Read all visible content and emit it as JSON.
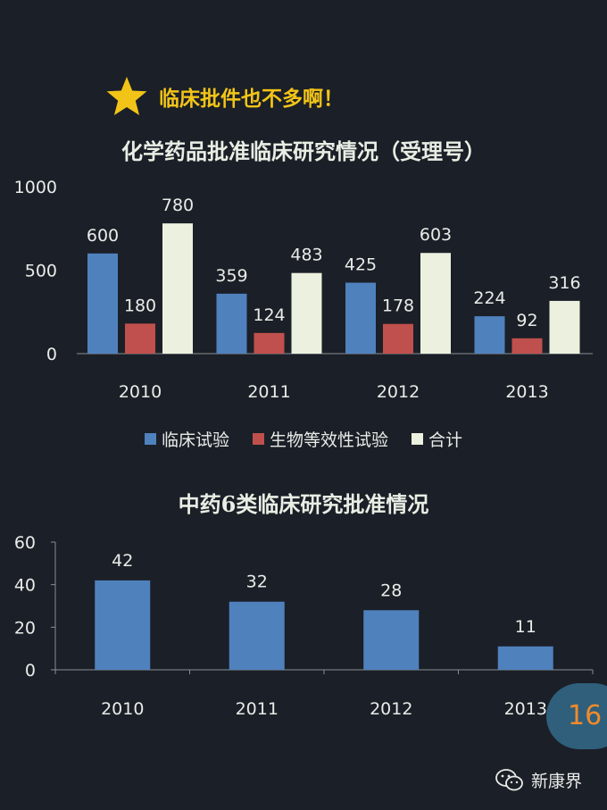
{
  "watermark": "",
  "banner": {
    "text": "临床批件也不多啊！",
    "icon": "star-icon",
    "icon_color": "#f2c418"
  },
  "chart_data": [
    {
      "type": "bar",
      "title": "化学药品批准临床研究情况（受理号）",
      "categories": [
        "2010",
        "2011",
        "2012",
        "2013"
      ],
      "series": [
        {
          "name": "临床试验",
          "color": "#4f81bd",
          "values": [
            600,
            359,
            425,
            224
          ]
        },
        {
          "name": "生物等效性试验",
          "color": "#c0504d",
          "values": [
            180,
            124,
            178,
            92
          ]
        },
        {
          "name": "合计",
          "color": "#ebf1de",
          "values": [
            780,
            483,
            603,
            316
          ]
        }
      ],
      "ylim": [
        0,
        1000
      ],
      "yticks": [
        0,
        500,
        1000
      ],
      "legend": "bottom",
      "grid": false
    },
    {
      "type": "bar",
      "title": "中药6类临床研究批准情况",
      "categories": [
        "2010",
        "2011",
        "2012",
        "2013"
      ],
      "series": [
        {
          "color": "#4f81bd",
          "values": [
            42,
            32,
            28,
            11
          ]
        }
      ],
      "ylim": [
        0,
        60
      ],
      "yticks": [
        0,
        20,
        40,
        60
      ],
      "grid": false
    }
  ],
  "footer": {
    "page_number": "16",
    "brand": "新康界",
    "brand_icon": "wechat-icon"
  }
}
